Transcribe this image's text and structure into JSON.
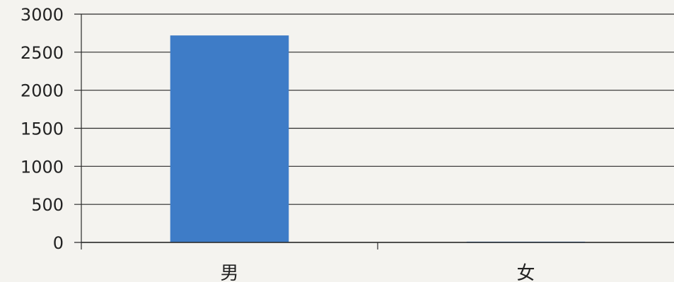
{
  "chart_data": {
    "type": "bar",
    "categories": [
      "男",
      "女"
    ],
    "values": [
      2720,
      10
    ],
    "title": "",
    "xlabel": "",
    "ylabel": "",
    "ylim": [
      0,
      3000
    ],
    "yticks": [
      0,
      500,
      1000,
      1500,
      2000,
      2500,
      3000
    ],
    "grid": true,
    "colors": {
      "bar": "#3e7cc7",
      "grid": "#2a2a2a",
      "text": "#222222"
    }
  }
}
